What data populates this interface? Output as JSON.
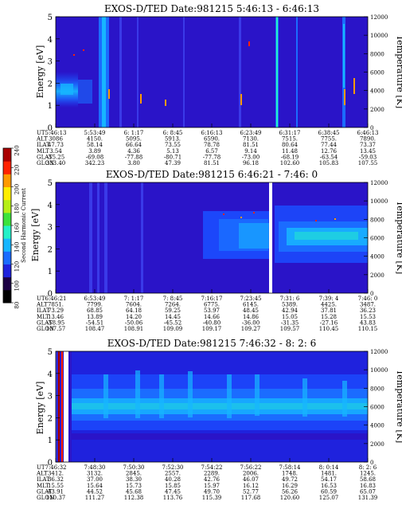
{
  "colorbar": {
    "label": "Second Harmonic Current",
    "ticks": [
      "80",
      "100",
      "120",
      "140",
      "160",
      "180",
      "200",
      "220",
      "240"
    ],
    "colors": [
      "#000000",
      "#1c0044",
      "#1f22dd",
      "#1b6cff",
      "#17b6ff",
      "#24f0c8",
      "#3ce23c",
      "#b6ee16",
      "#ffee00",
      "#ff9a00",
      "#ff2200",
      "#aa0000"
    ]
  },
  "background_color": "#2a14c8",
  "chart_data": [
    {
      "type": "heatmap",
      "title": "EXOS-D/TED   Date:981215   5:46:13 - 6:46:13",
      "ylabel": "Energy [eV]",
      "y2label": "Temperature [K]",
      "ylim": [
        0,
        5
      ],
      "y2lim": [
        0,
        12000
      ],
      "yticks": [
        "0",
        "1",
        "2",
        "3",
        "4",
        "5"
      ],
      "y2ticks": [
        "0",
        "2000",
        "4000",
        "6000",
        "8000",
        "10000",
        "12000"
      ],
      "row_labels": [
        "UT",
        "ALT",
        "ILAT",
        "MLT",
        "GLAT",
        "GLON"
      ],
      "columns": [
        [
          "5:46:13",
          "3086",
          "47.73",
          "3.54",
          "-55.25",
          "333.40"
        ],
        [
          "5:53:49",
          "4150.",
          "58.14",
          "3.89",
          "-69.08",
          "342.23"
        ],
        [
          "6: 1:17",
          "5095.",
          "66.64",
          "4.36",
          "-77.88",
          "3.80"
        ],
        [
          "6: 8:45",
          "5913.",
          "73.55",
          "5.13",
          "-80.71",
          "47.39"
        ],
        [
          "6:16:13",
          "6590.",
          "78.78",
          "6.57",
          "-77.78",
          "81.51"
        ],
        [
          "6:23:49",
          "7130.",
          "81.51",
          "9.14",
          "-73.00",
          "96.18"
        ],
        [
          "6:31:17",
          "7515.",
          "80.64",
          "11.48",
          "-68.19",
          "102.60"
        ],
        [
          "6:38:45",
          "7755.",
          "77.44",
          "12.76",
          "-63.54",
          "105.83"
        ],
        [
          "6:46:13",
          "7890.",
          "73.37",
          "13.45",
          "-59.03",
          "107.55"
        ]
      ]
    },
    {
      "type": "heatmap",
      "title": "EXOS-D/TED   Date:981215   6:46:21 - 7:46: 0",
      "ylabel": "Energy [eV]",
      "y2label": "Temperature [K]",
      "ylim": [
        0,
        5
      ],
      "y2lim": [
        0,
        12000
      ],
      "yticks": [
        "0",
        "1",
        "2",
        "3",
        "4",
        "5"
      ],
      "y2ticks": [
        "0",
        "2000",
        "4000",
        "6000",
        "8000",
        "10000",
        "12000"
      ],
      "row_labels": [
        "UT",
        "ALT",
        "ILAT",
        "MLT",
        "GLAT",
        "GLON"
      ],
      "columns": [
        [
          "6:46:21",
          "7851.",
          "73.29",
          "13.46",
          "-58.95",
          "107.57"
        ],
        [
          "6:53:49",
          "7799.",
          "68.85",
          "13.89",
          "-54.51",
          "108.47"
        ],
        [
          "7: 1:17",
          "7604.",
          "64.18",
          "14.20",
          "-50.06",
          "108.91"
        ],
        [
          "7: 8:45",
          "7264.",
          "59.25",
          "14.45",
          "-45.52",
          "109.09"
        ],
        [
          "7:16:17",
          "6775.",
          "53.97",
          "14.66",
          "-40.80",
          "109.17"
        ],
        [
          "7:23:45",
          "6145.",
          "48.45",
          "14.86",
          "-36.00",
          "109.27"
        ],
        [
          "7:31: 6",
          "5389.",
          "42.94",
          "15.05",
          "-31.35",
          "109.57"
        ],
        [
          "7:39: 4",
          "4425.",
          "37.81",
          "15.28",
          "-27.16",
          "110.45"
        ],
        [
          "7:46: 0",
          "3487.",
          "36.23",
          "15.53",
          "43.83",
          "110.15"
        ]
      ]
    },
    {
      "type": "heatmap",
      "title": "EXOS-D/TED   Date:981215   7:46:32 - 8: 2: 6",
      "ylabel": "Energy [eV]",
      "y2label": "Temperature [K]",
      "ylim": [
        0,
        5
      ],
      "y2lim": [
        0,
        12000
      ],
      "yticks": [
        "0",
        "1",
        "2",
        "3",
        "4",
        "5"
      ],
      "y2ticks": [
        "0",
        "2000",
        "4000",
        "6000",
        "8000",
        "10000",
        "12000"
      ],
      "row_labels": [
        "UT",
        "ALT",
        "ILAT",
        "MLT",
        "GLAT",
        "GLON"
      ],
      "columns": [
        [
          "7:46:32",
          "3412.",
          "36.32",
          "15.55",
          "43.91",
          "110.37"
        ],
        [
          "7:48:30",
          "3132.",
          "37.00",
          "15.64",
          "44.52",
          "111.27"
        ],
        [
          "7:50:30",
          "2845.",
          "38.30",
          "15.73",
          "45.68",
          "112.38"
        ],
        [
          "7:52:30",
          "2557.",
          "40.28",
          "15.85",
          "47.45",
          "113.76"
        ],
        [
          "7:54:22",
          "2289.",
          "42.76",
          "15.97",
          "49.70",
          "115.39"
        ],
        [
          "7:56:22",
          "2006.",
          "46.07",
          "16.12",
          "52.77",
          "117.68"
        ],
        [
          "7:58:14",
          "1748.",
          "49.72",
          "16.29",
          "56.26",
          "120.60"
        ],
        [
          "8: 0:14",
          "1481.",
          "54.17",
          "16.53",
          "60.59",
          "125.07"
        ],
        [
          "8: 2: 6",
          "1245.",
          "58.68",
          "16.83",
          "65.07",
          "131.39"
        ]
      ]
    }
  ]
}
